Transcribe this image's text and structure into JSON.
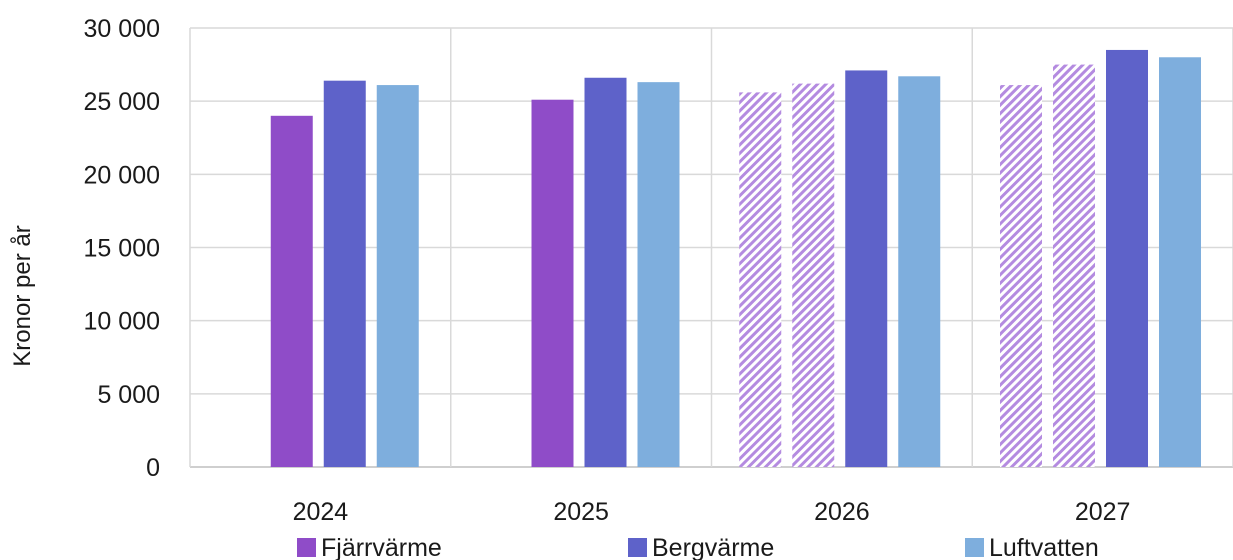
{
  "chart_data": {
    "type": "bar",
    "ylabel": "Kronor per år",
    "ylim": [
      0,
      30000
    ],
    "yticks": [
      0,
      5000,
      10000,
      15000,
      20000,
      25000,
      30000
    ],
    "ytick_labels": [
      "0",
      "5 000",
      "10 000",
      "15 000",
      "20 000",
      "25 000",
      "30 000"
    ],
    "grid": true,
    "legend_position": "bottom",
    "groups": [
      {
        "label": "2024",
        "bars": [
          {
            "series": "Fjärrvärme",
            "value": 24000,
            "style": "solid"
          },
          {
            "series": "Bergvärme",
            "value": 26400,
            "style": "solid"
          },
          {
            "series": "Luftvatten",
            "value": 26100,
            "style": "solid"
          }
        ]
      },
      {
        "label": "2025",
        "bars": [
          {
            "series": "Fjärrvärme",
            "value": 25100,
            "style": "solid"
          },
          {
            "series": "Bergvärme",
            "value": 26600,
            "style": "solid"
          },
          {
            "series": "Luftvatten",
            "value": 26300,
            "style": "solid"
          }
        ]
      },
      {
        "label": "2026",
        "bars": [
          {
            "series": "Fjärrvärme",
            "value": 25600,
            "style": "hatched"
          },
          {
            "series": "Fjärrvärme",
            "value": 26200,
            "style": "hatched"
          },
          {
            "series": "Bergvärme",
            "value": 27100,
            "style": "solid"
          },
          {
            "series": "Luftvatten",
            "value": 26700,
            "style": "solid"
          }
        ]
      },
      {
        "label": "2027",
        "bars": [
          {
            "series": "Fjärrvärme",
            "value": 26100,
            "style": "hatched"
          },
          {
            "series": "Fjärrvärme",
            "value": 27500,
            "style": "hatched"
          },
          {
            "series": "Bergvärme",
            "value": 28500,
            "style": "solid"
          },
          {
            "series": "Luftvatten",
            "value": 28000,
            "style": "solid"
          }
        ]
      }
    ],
    "legend": [
      {
        "name": "Fjärrvärme",
        "color": "#8f4cc8"
      },
      {
        "name": "Bergvärme",
        "color": "#5e62c9"
      },
      {
        "name": "Luftvatten",
        "color": "#7eaedd"
      }
    ],
    "colors": {
      "Fjärrvärme": "#8f4cc8",
      "Bergvärme": "#5e62c9",
      "Luftvatten": "#7eaedd",
      "hatch": "#b48be0",
      "grid": "#d9d9d9"
    }
  }
}
